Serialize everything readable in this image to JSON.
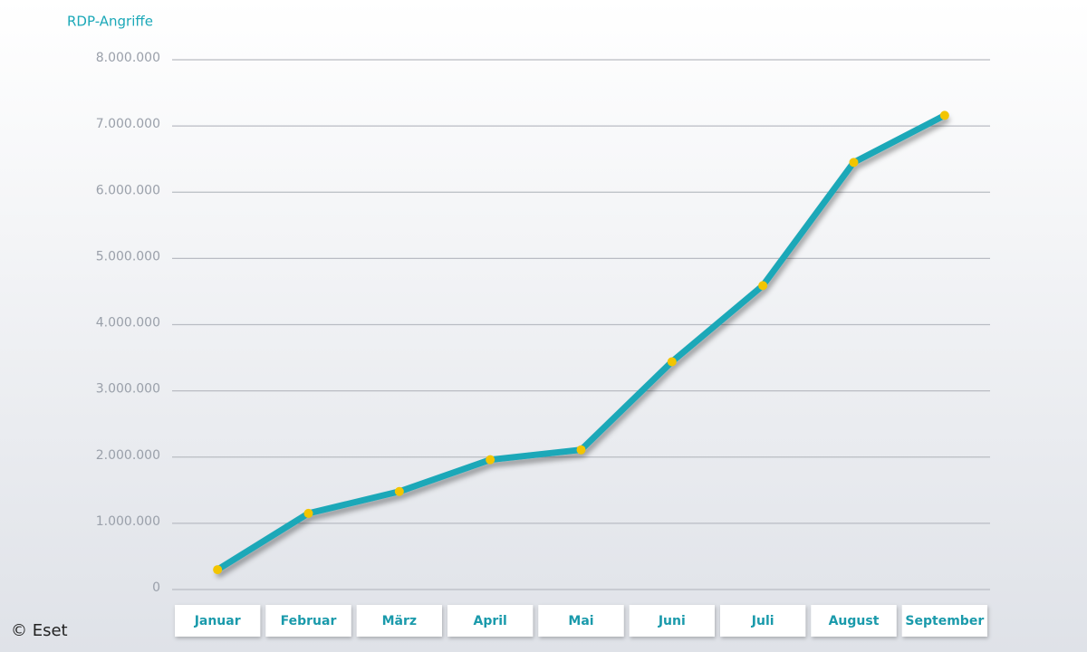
{
  "chart_data": {
    "type": "line",
    "y_axis_title": "RDP-Angriffe",
    "credit": "© Eset",
    "categories": [
      "Januar",
      "Februar",
      "März",
      "April",
      "Mai",
      "Juni",
      "Juli",
      "August",
      "September"
    ],
    "series": [
      {
        "name": "RDP-Angriffe",
        "color": "#1ba8b8",
        "marker_color": "#f2c500",
        "values": [
          300000,
          1150000,
          1480000,
          1960000,
          2110000,
          3440000,
          4590000,
          6450000,
          7160000
        ]
      }
    ],
    "ylim": [
      0,
      8000000
    ],
    "yticks": [
      0,
      {
        "value": 1000000,
        "label": "1.000.000"
      },
      {
        "value": 2000000,
        "label": "2.000.000"
      },
      {
        "value": 3000000,
        "label": "3.000.000"
      },
      {
        "value": 4000000,
        "label": "4.000.000"
      },
      {
        "value": 5000000,
        "label": "5.000.000"
      },
      {
        "value": 6000000,
        "label": "6.000.000"
      },
      {
        "value": 7000000,
        "label": "7.000.000"
      },
      {
        "value": 8000000,
        "label": "8.000.000"
      }
    ],
    "grid": true
  }
}
